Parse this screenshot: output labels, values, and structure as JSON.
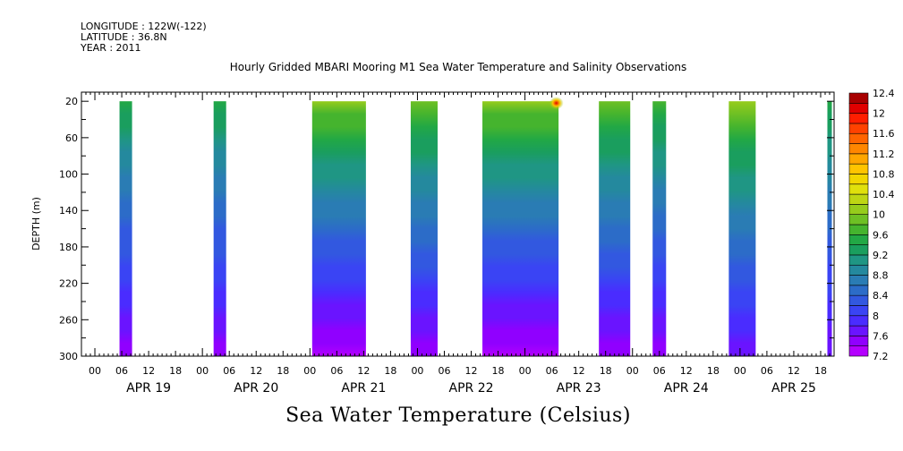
{
  "header": {
    "longitude": "LONGITUDE : 122W(-122)",
    "latitude": "LATITUDE : 36.8N",
    "year": "YEAR : 2011"
  },
  "chart_data": {
    "type": "heatmap",
    "title": "Hourly Gridded MBARI Mooring M1 Sea Water Temperature and Salinity Observations",
    "bottom_title": "Sea Water Temperature (Celsius)",
    "ylabel": "DEPTH (m)",
    "y_ticks": [
      20,
      60,
      100,
      140,
      180,
      220,
      260,
      300
    ],
    "ylim": [
      300,
      10
    ],
    "x_ticks": [
      {
        "hour": -6,
        "label": "00"
      },
      {
        "hour": 0,
        "label": "06"
      },
      {
        "hour": 6,
        "label": "12"
      },
      {
        "hour": 12,
        "label": "18"
      },
      {
        "hour": 18,
        "label": "00"
      },
      {
        "hour": 24,
        "label": "06"
      },
      {
        "hour": 30,
        "label": "12"
      },
      {
        "hour": 36,
        "label": "18"
      },
      {
        "hour": 42,
        "label": "00"
      },
      {
        "hour": 48,
        "label": "06"
      },
      {
        "hour": 54,
        "label": "12"
      },
      {
        "hour": 60,
        "label": "18"
      },
      {
        "hour": 66,
        "label": "00"
      },
      {
        "hour": 72,
        "label": "06"
      },
      {
        "hour": 78,
        "label": "12"
      },
      {
        "hour": 84,
        "label": "18"
      },
      {
        "hour": 90,
        "label": "00"
      },
      {
        "hour": 96,
        "label": "06"
      },
      {
        "hour": 102,
        "label": "12"
      },
      {
        "hour": 108,
        "label": "18"
      },
      {
        "hour": 114,
        "label": "00"
      },
      {
        "hour": 120,
        "label": "06"
      },
      {
        "hour": 126,
        "label": "12"
      },
      {
        "hour": 132,
        "label": "18"
      },
      {
        "hour": 138,
        "label": "00"
      },
      {
        "hour": 144,
        "label": "06"
      },
      {
        "hour": 150,
        "label": "12"
      },
      {
        "hour": 156,
        "label": "18"
      }
    ],
    "days": [
      "APR 19",
      "APR 20",
      "APR 21",
      "APR 22",
      "APR 23",
      "APR 24",
      "APR 25"
    ],
    "segments": [
      {
        "start": -0.5,
        "end": 2.3,
        "surface": 9.5,
        "bottom": 7.5
      },
      {
        "start": 20.5,
        "end": 23.3,
        "surface": 9.5,
        "bottom": 7.5
      },
      {
        "start": 42.5,
        "end": 54.5,
        "surface": 10.0,
        "bottom": 7.3
      },
      {
        "start": 64.5,
        "end": 70.5,
        "surface": 9.8,
        "bottom": 7.5
      },
      {
        "start": 80.5,
        "end": 97.5,
        "surface": 10.0,
        "bottom": 7.3
      },
      {
        "start": 106.5,
        "end": 113.5,
        "surface": 9.8,
        "bottom": 7.5
      },
      {
        "start": 118.5,
        "end": 121.5,
        "surface": 9.7,
        "bottom": 7.5
      },
      {
        "start": 135.5,
        "end": 141.5,
        "surface": 10.0,
        "bottom": 7.6
      },
      {
        "start": 157.5,
        "end": 158.5,
        "surface": 9.5,
        "bottom": 7.6
      }
    ],
    "hotspot": {
      "hour": 97,
      "depth": 22,
      "value": 12.0
    },
    "colorbar": {
      "levels": [
        7.2,
        7.4,
        7.6,
        7.8,
        8.0,
        8.2,
        8.4,
        8.6,
        8.8,
        9.0,
        9.2,
        9.4,
        9.6,
        9.8,
        10.0,
        10.2,
        10.4,
        10.6,
        10.8,
        11.0,
        11.2,
        11.4,
        11.6,
        11.8,
        12.0,
        12.2,
        12.4
      ],
      "labels": [
        "7.2",
        "7.6",
        "8",
        "8.4",
        "8.8",
        "9.2",
        "9.6",
        "10",
        "10.4",
        "10.8",
        "11.2",
        "11.6",
        "12",
        "12.4"
      ],
      "colors": [
        "#b400ff",
        "#9000ff",
        "#6a14ff",
        "#4a2cff",
        "#3a44f4",
        "#3258e0",
        "#2c6cc8",
        "#2a7cb4",
        "#24899e",
        "#1f9684",
        "#1a9e5e",
        "#22a845",
        "#45b42e",
        "#6ec024",
        "#96cc1c",
        "#bed614",
        "#e0e00c",
        "#f2d600",
        "#ffc400",
        "#ffa600",
        "#ff8600",
        "#ff6400",
        "#ff4200",
        "#ff1e00",
        "#e00000",
        "#a80000"
      ]
    }
  }
}
